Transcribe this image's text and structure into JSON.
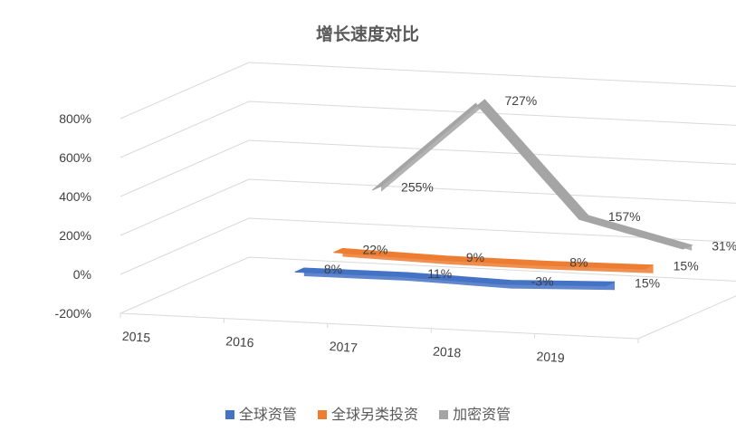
{
  "chart_data": {
    "type": "line",
    "subtype": "3d-line",
    "title": "增长速度对比",
    "categories": [
      "2015",
      "2016",
      "2017",
      "2018",
      "2019"
    ],
    "yticks": [
      "800%",
      "600%",
      "400%",
      "200%",
      "0%",
      "-200%"
    ],
    "ylim": [
      -200,
      800
    ],
    "grid": true,
    "legend_position": "bottom",
    "series": [
      {
        "name": "全球资管",
        "color": "#4472C4",
        "values": [
          null,
          8,
          11,
          -3,
          15
        ],
        "labels": [
          "",
          "8%",
          "11%",
          "-3%",
          "15%"
        ]
      },
      {
        "name": "全球另类投资",
        "color": "#ED7D31",
        "values": [
          null,
          22,
          9,
          8,
          15
        ],
        "labels": [
          "",
          "22%",
          "9%",
          "8%",
          "15%"
        ]
      },
      {
        "name": "加密资管",
        "color": "#A5A5A5",
        "values": [
          null,
          255,
          727,
          157,
          31
        ],
        "labels": [
          "",
          "255%",
          "727%",
          "157%",
          "31%"
        ]
      }
    ],
    "negative_label_color": "#C00000"
  }
}
